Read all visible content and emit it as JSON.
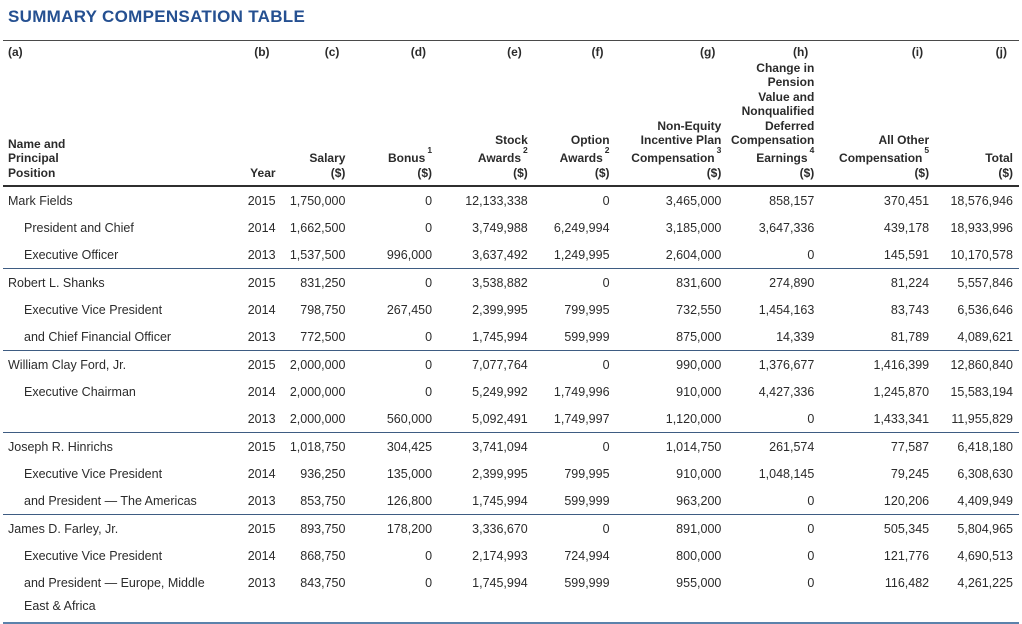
{
  "page": {
    "title": "SUMMARY COMPENSATION TABLE"
  },
  "colors": {
    "title_blue": "#255091",
    "text": "#2b2b2b",
    "rule_top": "#4a4a4a",
    "rule_heavy": "#2f2f2f",
    "rule_group": "#3e5c82",
    "rule_bottom": "#5b82ab"
  },
  "table": {
    "columns": [
      {
        "key": "name",
        "letter": "(a)",
        "lines": [
          "Name and",
          "Principal",
          "Position"
        ]
      },
      {
        "key": "year",
        "letter": "(b)",
        "lines": [
          "Year"
        ]
      },
      {
        "key": "salary",
        "letter": "(c)",
        "lines": [
          "Salary",
          "($)"
        ]
      },
      {
        "key": "bonus",
        "letter": "(d)",
        "lines": [
          "Bonus",
          "($)"
        ],
        "sup": "1",
        "sup_line": 0
      },
      {
        "key": "stock_awards",
        "letter": "(e)",
        "lines": [
          "Stock",
          "Awards",
          "($)"
        ],
        "sup": "2",
        "sup_line": 1
      },
      {
        "key": "option_awards",
        "letter": "(f)",
        "lines": [
          "Option",
          "Awards",
          "($)"
        ],
        "sup": "2",
        "sup_line": 1
      },
      {
        "key": "non_equity",
        "letter": "(g)",
        "lines": [
          "Non-Equity",
          "Incentive Plan",
          "Compensation",
          "($)"
        ],
        "sup": "3",
        "sup_line": 2
      },
      {
        "key": "pension",
        "letter": "(h)",
        "lines": [
          "Change in",
          "Pension",
          "Value and",
          "Nonqualified",
          "Deferred",
          "Compensation",
          "Earnings",
          "($)"
        ],
        "sup": "4",
        "sup_line": 6
      },
      {
        "key": "all_other",
        "letter": "(i)",
        "lines": [
          "All Other",
          "Compensation",
          "($)"
        ],
        "sup": "5",
        "sup_line": 1
      },
      {
        "key": "total",
        "letter": "(j)",
        "lines": [
          "Total",
          "($)"
        ]
      }
    ],
    "groups": [
      {
        "name_lines": [
          "Mark Fields",
          "President and Chief",
          "Executive Officer"
        ],
        "rows": [
          {
            "year": "2015",
            "salary": "1,750,000",
            "bonus": "0",
            "stock_awards": "12,133,338",
            "option_awards": "0",
            "non_equity": "3,465,000",
            "pension": "858,157",
            "all_other": "370,451",
            "total": "18,576,946"
          },
          {
            "year": "2014",
            "salary": "1,662,500",
            "bonus": "0",
            "stock_awards": "3,749,988",
            "option_awards": "6,249,994",
            "non_equity": "3,185,000",
            "pension": "3,647,336",
            "all_other": "439,178",
            "total": "18,933,996"
          },
          {
            "year": "2013",
            "salary": "1,537,500",
            "bonus": "996,000",
            "stock_awards": "3,637,492",
            "option_awards": "1,249,995",
            "non_equity": "2,604,000",
            "pension": "0",
            "all_other": "145,591",
            "total": "10,170,578"
          }
        ]
      },
      {
        "name_lines": [
          "Robert L. Shanks",
          "Executive Vice President",
          "and Chief Financial Officer"
        ],
        "rows": [
          {
            "year": "2015",
            "salary": "831,250",
            "bonus": "0",
            "stock_awards": "3,538,882",
            "option_awards": "0",
            "non_equity": "831,600",
            "pension": "274,890",
            "all_other": "81,224",
            "total": "5,557,846"
          },
          {
            "year": "2014",
            "salary": "798,750",
            "bonus": "267,450",
            "stock_awards": "2,399,995",
            "option_awards": "799,995",
            "non_equity": "732,550",
            "pension": "1,454,163",
            "all_other": "83,743",
            "total": "6,536,646"
          },
          {
            "year": "2013",
            "salary": "772,500",
            "bonus": "0",
            "stock_awards": "1,745,994",
            "option_awards": "599,999",
            "non_equity": "875,000",
            "pension": "14,339",
            "all_other": "81,789",
            "total": "4,089,621"
          }
        ]
      },
      {
        "name_lines": [
          "William Clay Ford, Jr.",
          "Executive Chairman"
        ],
        "rows": [
          {
            "year": "2015",
            "salary": "2,000,000",
            "bonus": "0",
            "stock_awards": "7,077,764",
            "option_awards": "0",
            "non_equity": "990,000",
            "pension": "1,376,677",
            "all_other": "1,416,399",
            "total": "12,860,840"
          },
          {
            "year": "2014",
            "salary": "2,000,000",
            "bonus": "0",
            "stock_awards": "5,249,992",
            "option_awards": "1,749,996",
            "non_equity": "910,000",
            "pension": "4,427,336",
            "all_other": "1,245,870",
            "total": "15,583,194"
          },
          {
            "year": "2013",
            "salary": "2,000,000",
            "bonus": "560,000",
            "stock_awards": "5,092,491",
            "option_awards": "1,749,997",
            "non_equity": "1,120,000",
            "pension": "0",
            "all_other": "1,433,341",
            "total": "11,955,829"
          }
        ]
      },
      {
        "name_lines": [
          "Joseph R. Hinrichs",
          "Executive Vice President",
          "and President — The Americas"
        ],
        "rows": [
          {
            "year": "2015",
            "salary": "1,018,750",
            "bonus": "304,425",
            "stock_awards": "3,741,094",
            "option_awards": "0",
            "non_equity": "1,014,750",
            "pension": "261,574",
            "all_other": "77,587",
            "total": "6,418,180"
          },
          {
            "year": "2014",
            "salary": "936,250",
            "bonus": "135,000",
            "stock_awards": "2,399,995",
            "option_awards": "799,995",
            "non_equity": "910,000",
            "pension": "1,048,145",
            "all_other": "79,245",
            "total": "6,308,630"
          },
          {
            "year": "2013",
            "salary": "853,750",
            "bonus": "126,800",
            "stock_awards": "1,745,994",
            "option_awards": "599,999",
            "non_equity": "963,200",
            "pension": "0",
            "all_other": "120,206",
            "total": "4,409,949"
          }
        ]
      },
      {
        "name_lines": [
          "James D. Farley, Jr.",
          "Executive Vice President",
          "and President — Europe, Middle",
          "East & Africa"
        ],
        "rows": [
          {
            "year": "2015",
            "salary": "893,750",
            "bonus": "178,200",
            "stock_awards": "3,336,670",
            "option_awards": "0",
            "non_equity": "891,000",
            "pension": "0",
            "all_other": "505,345",
            "total": "5,804,965"
          },
          {
            "year": "2014",
            "salary": "868,750",
            "bonus": "0",
            "stock_awards": "2,174,993",
            "option_awards": "724,994",
            "non_equity": "800,000",
            "pension": "0",
            "all_other": "121,776",
            "total": "4,690,513"
          },
          {
            "year": "2013",
            "salary": "843,750",
            "bonus": "0",
            "stock_awards": "1,745,994",
            "option_awards": "599,999",
            "non_equity": "955,000",
            "pension": "0",
            "all_other": "116,482",
            "total": "4,261,225"
          }
        ]
      }
    ]
  }
}
